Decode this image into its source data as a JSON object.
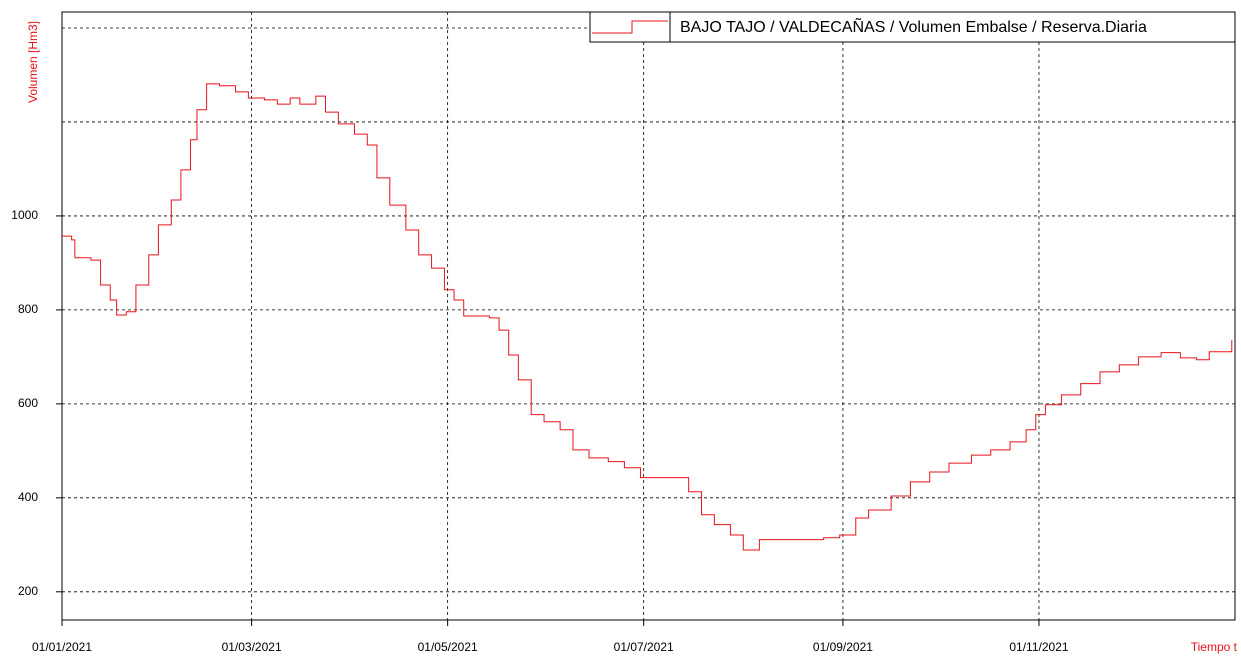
{
  "chart_data": {
    "type": "step-line",
    "y_label": "Volumen [Hm3]",
    "x_label": "Tiempo t",
    "ylim": [
      140,
      1434
    ],
    "yticks": [
      200,
      400,
      600,
      800,
      1000
    ],
    "ygrid": [
      200,
      400,
      600,
      800,
      1000,
      1200,
      1400
    ],
    "xlim": [
      "2021-01-01",
      "2022-01-01"
    ],
    "xticks": [
      {
        "value": "2021-01-01",
        "label": "01/01/2021"
      },
      {
        "value": "2021-03-01",
        "label": "01/03/2021"
      },
      {
        "value": "2021-05-01",
        "label": "01/05/2021"
      },
      {
        "value": "2021-07-01",
        "label": "01/07/2021"
      },
      {
        "value": "2021-09-01",
        "label": "01/09/2021"
      },
      {
        "value": "2021-11-01",
        "label": "01/11/2021"
      }
    ],
    "grid": true,
    "legend": "top-right",
    "x": [
      "2021-01-01",
      "2021-01-04",
      "2021-01-05",
      "2021-01-10",
      "2021-01-13",
      "2021-01-16",
      "2021-01-18",
      "2021-01-21",
      "2021-01-24",
      "2021-01-28",
      "2021-01-31",
      "2021-02-04",
      "2021-02-07",
      "2021-02-10",
      "2021-02-12",
      "2021-02-15",
      "2021-02-19",
      "2021-02-24",
      "2021-02-28",
      "2021-03-05",
      "2021-03-09",
      "2021-03-13",
      "2021-03-16",
      "2021-03-21",
      "2021-03-24",
      "2021-03-28",
      "2021-04-02",
      "2021-04-06",
      "2021-04-09",
      "2021-04-13",
      "2021-04-18",
      "2021-04-22",
      "2021-04-26",
      "2021-04-30",
      "2021-05-03",
      "2021-05-06",
      "2021-05-11",
      "2021-05-14",
      "2021-05-17",
      "2021-05-20",
      "2021-05-23",
      "2021-05-27",
      "2021-05-31",
      "2021-06-05",
      "2021-06-09",
      "2021-06-14",
      "2021-06-20",
      "2021-06-25",
      "2021-06-30",
      "2021-07-06",
      "2021-07-13",
      "2021-07-15",
      "2021-07-19",
      "2021-07-23",
      "2021-07-28",
      "2021-08-01",
      "2021-08-06",
      "2021-08-12",
      "2021-08-19",
      "2021-08-26",
      "2021-08-31",
      "2021-09-05",
      "2021-09-09",
      "2021-09-16",
      "2021-09-22",
      "2021-09-28",
      "2021-10-04",
      "2021-10-11",
      "2021-10-17",
      "2021-10-23",
      "2021-10-28",
      "2021-10-31",
      "2021-11-03",
      "2021-11-08",
      "2021-11-14",
      "2021-11-20",
      "2021-11-26",
      "2021-12-02",
      "2021-12-09",
      "2021-12-15",
      "2021-12-20",
      "2021-12-24",
      "2021-12-31"
    ],
    "series": [
      {
        "name": "BAJO TAJO / VALDECAÑAS / Volumen Embalse / Reserva.Diaria",
        "color": "#e8131b",
        "values": [
          957,
          949,
          911,
          906,
          853,
          821,
          789,
          796,
          853,
          917,
          981,
          1034,
          1098,
          1162,
          1226,
          1281,
          1277,
          1264,
          1251,
          1247,
          1238,
          1251,
          1238,
          1255,
          1221,
          1196,
          1174,
          1151,
          1081,
          1023,
          970,
          917,
          889,
          843,
          821,
          787,
          787,
          783,
          757,
          704,
          651,
          577,
          562,
          545,
          502,
          485,
          477,
          464,
          443,
          443,
          443,
          413,
          364,
          343,
          321,
          289,
          311,
          311,
          311,
          315,
          321,
          357,
          374,
          404,
          434,
          455,
          474,
          491,
          502,
          519,
          545,
          577,
          598,
          619,
          643,
          668,
          683,
          700,
          709,
          698,
          694,
          711,
          736
        ]
      }
    ]
  }
}
